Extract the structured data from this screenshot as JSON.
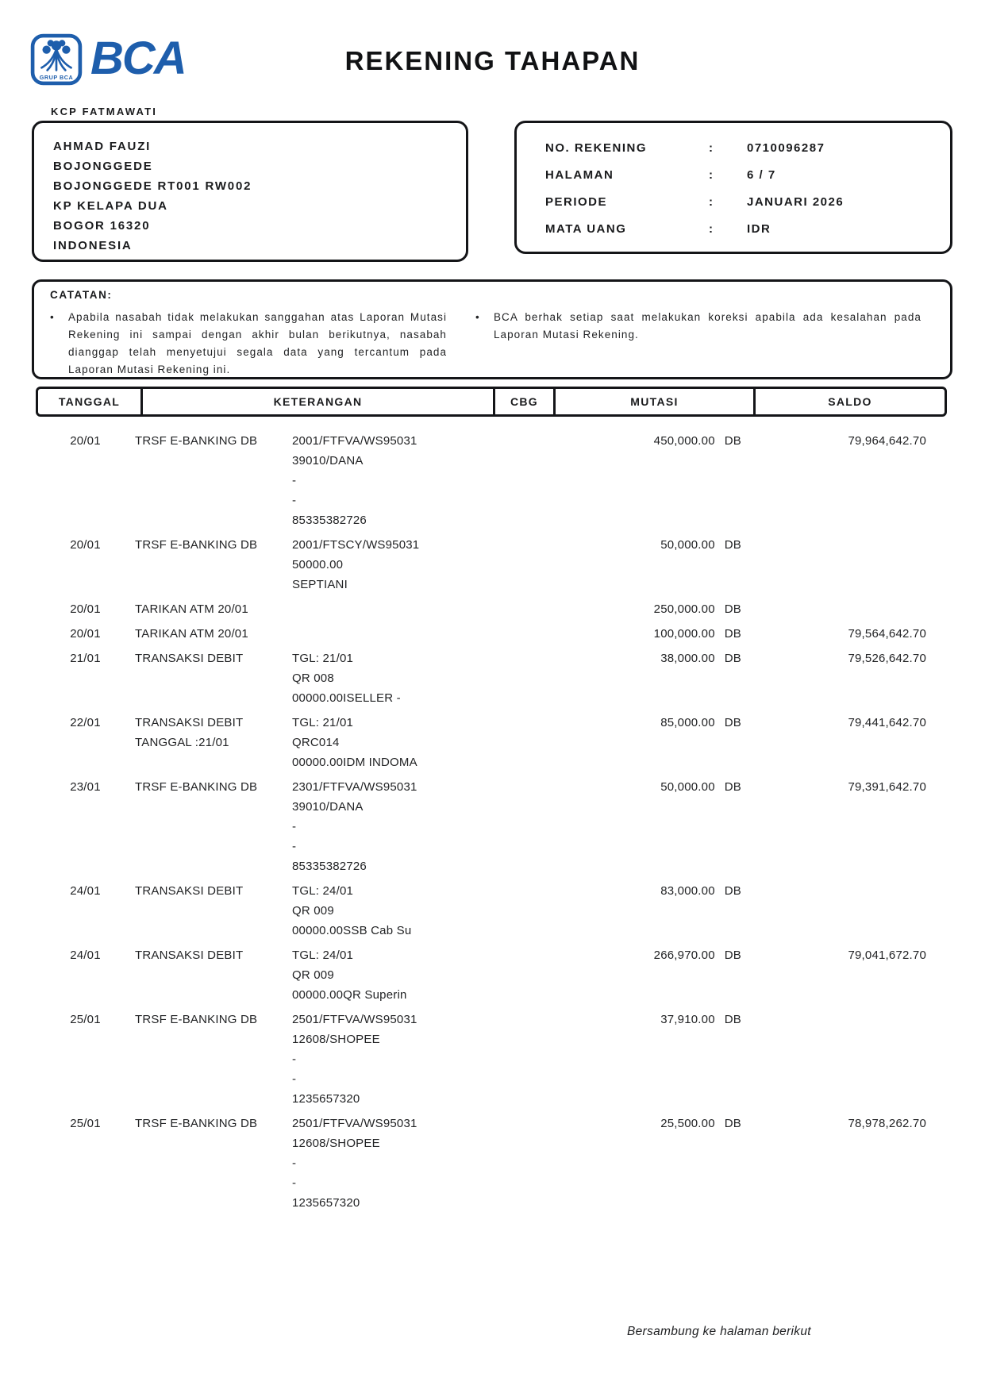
{
  "colors": {
    "brand_blue": "#1e5eac",
    "text": "#1a1b1d",
    "border": "#141518"
  },
  "header": {
    "logo_text": "BCA",
    "logo_subtext": "GRUP BCA",
    "title": "REKENING TAHAPAN",
    "branch": "KCP FATMAWATI"
  },
  "customer": {
    "lines": [
      "AHMAD FAUZI",
      "BOJONGGEDE",
      "BOJONGGEDE RT001 RW002",
      "KP KELAPA DUA",
      "BOGOR 16320",
      "INDONESIA"
    ]
  },
  "account_info": {
    "rows": [
      {
        "label": "NO. REKENING",
        "separator": ":",
        "value": "0710096287"
      },
      {
        "label": "HALAMAN",
        "separator": ":",
        "value": "6 / 7"
      },
      {
        "label": "PERIODE",
        "separator": ":",
        "value": "JANUARI 2026"
      },
      {
        "label": "MATA UANG",
        "separator": ":",
        "value": "IDR"
      }
    ]
  },
  "catatan": {
    "title": "CATATAN:",
    "bullets": [
      "Apabila nasabah tidak melakukan sanggahan atas Laporan Mutasi Rekening ini sampai dengan akhir bulan berikutnya, nasabah dianggap telah menyetujui segala data yang tercantum pada Laporan Mutasi Rekening ini.",
      "BCA berhak setiap saat melakukan koreksi apabila ada kesalahan pada Laporan Mutasi Rekening."
    ]
  },
  "table": {
    "columns": [
      "TANGGAL",
      "KETERANGAN",
      "CBG",
      "MUTASI",
      "SALDO"
    ],
    "rows": [
      {
        "tanggal": "20/01",
        "label": [
          "TRSF E-BANKING DB"
        ],
        "detail": [
          "2001/FTFVA/WS95031",
          "39010/DANA",
          "-",
          "-",
          "85335382726"
        ],
        "cbg": "",
        "mutasi": "450,000.00",
        "dbcr": "DB",
        "saldo": "79,964,642.70"
      },
      {
        "tanggal": "20/01",
        "label": [
          "TRSF E-BANKING DB"
        ],
        "detail": [
          "2001/FTSCY/WS95031",
          "50000.00",
          "SEPTIANI"
        ],
        "cbg": "",
        "mutasi": "50,000.00",
        "dbcr": "DB",
        "saldo": ""
      },
      {
        "tanggal": "20/01",
        "label": [
          "TARIKAN ATM 20/01"
        ],
        "detail": [],
        "cbg": "",
        "mutasi": "250,000.00",
        "dbcr": "DB",
        "saldo": ""
      },
      {
        "tanggal": "20/01",
        "label": [
          "TARIKAN ATM 20/01"
        ],
        "detail": [],
        "cbg": "",
        "mutasi": "100,000.00",
        "dbcr": "DB",
        "saldo": "79,564,642.70"
      },
      {
        "tanggal": "21/01",
        "label": [
          "TRANSAKSI DEBIT"
        ],
        "detail": [
          "TGL: 21/01",
          "QR 008",
          "00000.00ISELLER -"
        ],
        "cbg": "",
        "mutasi": "38,000.00",
        "dbcr": "DB",
        "saldo": "79,526,642.70"
      },
      {
        "tanggal": "22/01",
        "label": [
          "TRANSAKSI DEBIT",
          "TANGGAL :21/01"
        ],
        "detail": [
          "TGL: 21/01",
          "QRC014",
          "00000.00IDM INDOMA"
        ],
        "cbg": "",
        "mutasi": "85,000.00",
        "dbcr": "DB",
        "saldo": "79,441,642.70"
      },
      {
        "tanggal": "23/01",
        "label": [
          "TRSF E-BANKING DB"
        ],
        "detail": [
          "2301/FTFVA/WS95031",
          "39010/DANA",
          "-",
          "-",
          "85335382726"
        ],
        "cbg": "",
        "mutasi": "50,000.00",
        "dbcr": "DB",
        "saldo": "79,391,642.70"
      },
      {
        "tanggal": "24/01",
        "label": [
          "TRANSAKSI DEBIT"
        ],
        "detail": [
          "TGL: 24/01",
          "QR 009",
          "00000.00SSB Cab Su"
        ],
        "cbg": "",
        "mutasi": "83,000.00",
        "dbcr": "DB",
        "saldo": ""
      },
      {
        "tanggal": "24/01",
        "label": [
          "TRANSAKSI DEBIT"
        ],
        "detail": [
          "TGL: 24/01",
          "QR 009",
          "00000.00QR Superin"
        ],
        "cbg": "",
        "mutasi": "266,970.00",
        "dbcr": "DB",
        "saldo": "79,041,672.70"
      },
      {
        "tanggal": "25/01",
        "label": [
          "TRSF E-BANKING DB"
        ],
        "detail": [
          "2501/FTFVA/WS95031",
          "12608/SHOPEE",
          "-",
          "-",
          "1235657320"
        ],
        "cbg": "",
        "mutasi": "37,910.00",
        "dbcr": "DB",
        "saldo": ""
      },
      {
        "tanggal": "25/01",
        "label": [
          "TRSF E-BANKING DB"
        ],
        "detail": [
          "2501/FTFVA/WS95031",
          "12608/SHOPEE",
          "-",
          "-",
          "1235657320"
        ],
        "cbg": "",
        "mutasi": "25,500.00",
        "dbcr": "DB",
        "saldo": "78,978,262.70"
      }
    ]
  },
  "footer": {
    "continuation": "Bersambung ke halaman berikut"
  }
}
